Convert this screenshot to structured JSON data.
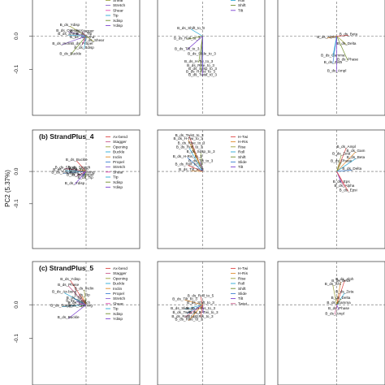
{
  "chart_data": {
    "type": "scatter",
    "ylabel": "PC2 (5.37%)",
    "rows": [
      {
        "title": "",
        "yticks": [
          "0.0",
          "-0.1"
        ],
        "panels": [
          {
            "legend": [
              "Shear",
              "Stretch",
              "Shear",
              "Tip",
              "Xdisp",
              "Ydisp"
            ],
            "legend_colors": [
              "#9aa03c",
              "#8a5fd0",
              "#e04ab0",
              "#2aa7d5",
              "#6e8c2a",
              "#7a3fd0"
            ],
            "labels": [
              {
                "t": "B_ds_Ydisp",
                "x": -0.42,
                "y": 0.26
              },
              {
                "t": "B_ds_Opening",
                "x": -0.45,
                "y": 0.11
              },
              {
                "t": "B_ds_Stagger",
                "x": -0.1,
                "y": 0.1
              },
              {
                "t": "B_ds_Shear",
                "x": -0.46,
                "y": 0.03
              },
              {
                "t": "B_ds_Tip",
                "x": -0.05,
                "y": 0.03
              },
              {
                "t": "B_ds_Ax-bend",
                "x": -0.1,
                "y": -0.05
              },
              {
                "t": "B_ds_Shear",
                "x": 0.2,
                "y": -0.14
              },
              {
                "t": "B_ds_Inclin",
                "x": -0.62,
                "y": -0.22
              },
              {
                "t": "B_ds_Propel",
                "x": -0.1,
                "y": -0.22
              },
              {
                "t": "B_ds_Xdisp",
                "x": -0.05,
                "y": -0.32
              },
              {
                "t": "B_ds_Buckle",
                "x": -0.4,
                "y": -0.48
              }
            ]
          },
          {
            "legend": [
              "Roll",
              "Shift",
              "Tilt"
            ],
            "legend_colors": [
              "#2aa7d5",
              "#6e8c2a",
              "#7a3fd0"
            ],
            "labels": [
              {
                "t": "B_ds_Shift_to_3",
                "x": -0.3,
                "y": 0.18
              },
              {
                "t": "B_ds_Roll_to_3",
                "x": -0.4,
                "y": -0.08
              },
              {
                "t": "B_ds_Tilt_to_3",
                "x": -0.4,
                "y": -0.35
              },
              {
                "t": "B_ds_Slide_to_3",
                "x": -0.02,
                "y": -0.48
              },
              {
                "t": "B_ds_H-Tw_to_3",
                "x": -0.1,
                "y": -0.68
              },
              {
                "t": "B_ds_Rise_to_3",
                "x": -0.05,
                "y": -0.78
              },
              {
                "t": "B_ds_Sdsp_to_3",
                "x": 0.0,
                "y": -0.86
              },
              {
                "t": "B_ds_H-Ris_to_3",
                "x": -0.05,
                "y": -0.94
              },
              {
                "t": "B_ds_Twist_to_3",
                "x": 0.0,
                "y": -1.02
              }
            ]
          },
          {
            "legend": [],
            "legend_colors": [],
            "labels": [
              {
                "t": "B_ds_Beta",
                "x": 0.3,
                "y": 0.02
              },
              {
                "t": "B_ds_Alpha",
                "x": -0.25,
                "y": -0.05
              },
              {
                "t": "B_ds_Delta",
                "x": 0.25,
                "y": -0.22
              },
              {
                "t": "B_ds_Gamma",
                "x": -0.1,
                "y": -0.52
              },
              {
                "t": "B_ds_Phase",
                "x": 0.28,
                "y": -0.62
              },
              {
                "t": "B_ds_Zeta",
                "x": -0.1,
                "y": -0.7
              },
              {
                "t": "B_ds_Ampl",
                "x": 0.0,
                "y": -0.92
              }
            ]
          }
        ]
      },
      {
        "title": "(b) StrandPlus_4",
        "yticks": [
          "0.0",
          "-0.1"
        ],
        "panels": [
          {
            "legend": [
              "Ax-bend",
              "Stagger",
              "Opening",
              "Buckle",
              "Inclin",
              "Propel",
              "Stretch",
              "Shear",
              "Tip",
              "Xdisp",
              "Ydisp"
            ],
            "legend_colors": [
              "#d44",
              "#c85a8a",
              "#9aa03c",
              "#2aa7d5",
              "#e08a2a",
              "#3a7fd0",
              "#8a5fd0",
              "#e04ab0",
              "#2aa7d5",
              "#6e8c2a",
              "#7a3fd0"
            ],
            "labels": [
              {
                "t": "B_ds_Buckle",
                "x": -0.25,
                "y": 0.28
              },
              {
                "t": "B_ds_Shear",
                "x": -0.55,
                "y": 0.08
              },
              {
                "t": "B_ds_Stretch",
                "x": -0.18,
                "y": 0.08
              },
              {
                "t": "B_ds_Ax-bend",
                "x": -0.55,
                "y": 0.02
              },
              {
                "t": "B_ds_Inclin",
                "x": -0.2,
                "y": 0.02
              },
              {
                "t": "B_ds_Stagger",
                "x": -0.6,
                "y": -0.05
              },
              {
                "t": "B_ds_Opening",
                "x": -0.1,
                "y": -0.05
              },
              {
                "t": "B_ds_Xdisp",
                "x": -0.25,
                "y": -0.12
              },
              {
                "t": "B_ds_Propel",
                "x": -0.08,
                "y": -0.12
              },
              {
                "t": "B_ds_Tip",
                "x": -0.02,
                "y": -0.19
              },
              {
                "t": "B_ds_Ydisp",
                "x": -0.3,
                "y": -0.34
              }
            ]
          },
          {
            "legend": [
              "H-Twi",
              "H-Ris",
              "Rise",
              "Roll",
              "Shift",
              "Slide",
              "Tilt"
            ],
            "legend_colors": [
              "#d44",
              "#e08a2a",
              "#9aa03c",
              "#2aa7d5",
              "#6e8c2a",
              "#3a7fd0",
              "#7a3fd0"
            ],
            "labels": [
              {
                "t": "B_ds_Twist_to_3",
                "x": -0.35,
                "y": 0.92
              },
              {
                "t": "B_ds_H-Twi_to_3",
                "x": -0.38,
                "y": 0.84
              },
              {
                "t": "B_ds_Rise_to_3",
                "x": -0.3,
                "y": 0.72
              },
              {
                "t": "B_ds_Roll_to_3",
                "x": -0.35,
                "y": 0.61
              },
              {
                "t": "B_ds_Sdsp_to_3",
                "x": -0.05,
                "y": 0.49
              },
              {
                "t": "B_ds_H-Ris_to_3",
                "x": -0.4,
                "y": 0.37
              },
              {
                "t": "B_ds_Tilt_to_3",
                "x": -0.05,
                "y": 0.25
              },
              {
                "t": "B_ds_Roll_to_3",
                "x": -0.38,
                "y": 0.16
              },
              {
                "t": "B_ds_Tilt_to_3",
                "x": -0.3,
                "y": 0.02
              }
            ]
          },
          {
            "legend": [],
            "legend_colors": [],
            "labels": [
              {
                "t": "B_ds_Ampl",
                "x": 0.25,
                "y": 0.62
              },
              {
                "t": "B_ds_Gam",
                "x": 0.5,
                "y": 0.52
              },
              {
                "t": "B_ds_Zeta",
                "x": 0.12,
                "y": 0.44
              },
              {
                "t": "B_ds_Beta",
                "x": 0.5,
                "y": 0.34
              },
              {
                "t": "B_ds_Phase",
                "x": 0.12,
                "y": 0.25
              },
              {
                "t": "B_ds_Delta",
                "x": 0.4,
                "y": 0.04
              },
              {
                "t": "B_ds_Eps",
                "x": 0.12,
                "y": -0.3
              },
              {
                "t": "B_ds_Alpha",
                "x": 0.2,
                "y": -0.4
              },
              {
                "t": "B_ds_Epsi",
                "x": 0.3,
                "y": -0.52
              }
            ]
          }
        ]
      },
      {
        "title": "(c) StrandPlus_5",
        "yticks": [
          "0.0",
          "-0.1"
        ],
        "panels": [
          {
            "legend": [
              "Ax-bend",
              "Stagger",
              "Opening",
              "Buckle",
              "Inclin",
              "Propel",
              "Stretch",
              "Shear",
              "Tip",
              "Xdisp",
              "Ydisp"
            ],
            "legend_colors": [
              "#d44",
              "#c85a8a",
              "#9aa03c",
              "#2aa7d5",
              "#e08a2a",
              "#3a7fd0",
              "#8a5fd0",
              "#e04ab0",
              "#2aa7d5",
              "#6e8c2a",
              "#7a3fd0"
            ],
            "labels": [
              {
                "t": "B_ds_Ydisp",
                "x": -0.4,
                "y": 0.62
              },
              {
                "t": "B_ds_Phase",
                "x": -0.45,
                "y": 0.48
              },
              {
                "t": "B_ds_Inclin",
                "x": -0.05,
                "y": 0.38
              },
              {
                "t": "B_ds_Ax-bend",
                "x": -0.55,
                "y": 0.3
              },
              {
                "t": "B_ds_Tip",
                "x": -0.1,
                "y": 0.22
              },
              {
                "t": "B_ds_Tip",
                "x": -0.3,
                "y": 0.15
              },
              {
                "t": "B_ds_Shear",
                "x": -0.25,
                "y": 0.08
              },
              {
                "t": "B_ds_Stretch",
                "x": -0.18,
                "y": 0.02
              },
              {
                "t": "B_ds_Stagger",
                "x": -0.6,
                "y": -0.05
              },
              {
                "t": "B_ds_Opening",
                "x": -0.15,
                "y": -0.05
              },
              {
                "t": "B_ds_Buckle",
                "x": -0.45,
                "y": -0.35
              }
            ]
          },
          {
            "legend": [
              "H-Twi",
              "H-Ris",
              "Rise",
              "Roll",
              "Shift",
              "Slide",
              "Tilt",
              "Twist"
            ],
            "legend_colors": [
              "#d44",
              "#e08a2a",
              "#9aa03c",
              "#2aa7d5",
              "#6e8c2a",
              "#3a7fd0",
              "#7a3fd0",
              "#c85a8a"
            ],
            "labels": [
              {
                "t": "B_ds_Roll_to_5",
                "x": -0.05,
                "y": 0.2
              },
              {
                "t": "B_ds_Tilt_to_3",
                "x": -0.45,
                "y": 0.12
              },
              {
                "t": "B_ds_Shift_to_3",
                "x": -0.05,
                "y": 0.02
              },
              {
                "t": "B_ds_Slide_to_3",
                "x": -0.45,
                "y": -0.12
              },
              {
                "t": "B_ds_H-Ris_to_3",
                "x": -0.05,
                "y": -0.12
              },
              {
                "t": "B_ds_Twist_to_3",
                "x": -0.4,
                "y": -0.22
              },
              {
                "t": "B_ds_H-Twi_to_3",
                "x": 0.02,
                "y": -0.22
              },
              {
                "t": "B_ds_Roll_to_3",
                "x": -0.45,
                "y": -0.32
              },
              {
                "t": "B_ds_Ris_to_3",
                "x": -0.05,
                "y": -0.32
              },
              {
                "t": "B_ds_Rise_to_3",
                "x": -0.35,
                "y": -0.4
              }
            ]
          },
          {
            "legend": [],
            "legend_colors": [],
            "labels": [
              {
                "t": "B_ds_Alph",
                "x": 0.2,
                "y": 0.62
              },
              {
                "t": "B_ds_Beta",
                "x": 0.1,
                "y": 0.58
              },
              {
                "t": "B_ds_Chi",
                "x": -0.1,
                "y": 0.5
              },
              {
                "t": "B_ds_Zeta",
                "x": 0.2,
                "y": 0.3
              },
              {
                "t": "B_ds_Delta",
                "x": 0.1,
                "y": 0.15
              },
              {
                "t": "B_ds_Gamma",
                "x": 0.05,
                "y": 0.02
              },
              {
                "t": "B_ds_Phase",
                "x": 0.05,
                "y": -0.12
              },
              {
                "t": "B_ds_Ampl",
                "x": -0.05,
                "y": -0.25
              }
            ]
          }
        ]
      }
    ]
  }
}
